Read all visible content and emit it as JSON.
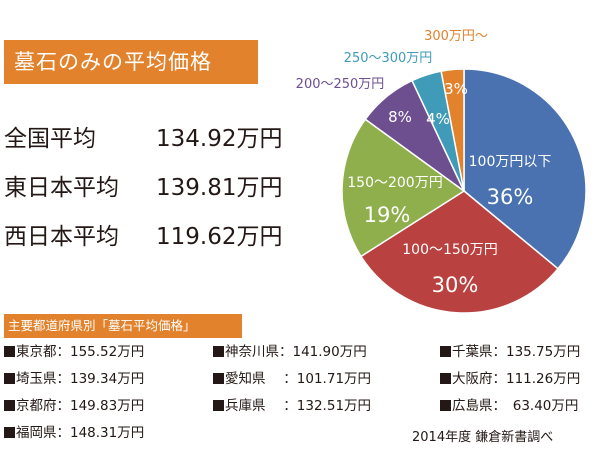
{
  "title": "墓石のみの平均価格",
  "averages": [
    {
      "label": "全国平均",
      "value": "134.92万円"
    },
    {
      "label": "東日本平均",
      "value": "139.81万円"
    },
    {
      "label": "西日本平均",
      "value": "119.62万円"
    }
  ],
  "prefecture_header": "主要都道府県別「墓石平均価格」",
  "prefectures": [
    {
      "text": "東京都：155.52万円"
    },
    {
      "text": "神奈川県：141.90万円"
    },
    {
      "text": "千葉県：135.75万円"
    },
    {
      "text": "埼玉県：139.34万円"
    },
    {
      "text": "愛知県　 ：101.71万円"
    },
    {
      "text": "大阪府：111.26万円"
    },
    {
      "text": "京都府：149.83万円"
    },
    {
      "text": "兵庫県　 ：132.51万円"
    },
    {
      "text": "広島県：　63.40万円"
    },
    {
      "text": "福岡県：148.31万円"
    }
  ],
  "source": "2014年度 鎌倉新書調べ",
  "chart_data": {
    "type": "pie",
    "title": "",
    "slices": [
      {
        "label": "100万円以下",
        "value": 36,
        "value_label": "36%",
        "color": "#4a72b0"
      },
      {
        "label": "100～150万円",
        "value": 30,
        "value_label": "30%",
        "color": "#b9413f"
      },
      {
        "label": "150～200万円",
        "value": 19,
        "value_label": "19%",
        "color": "#8fae4c"
      },
      {
        "label": "200～250万円",
        "value": 8,
        "value_label": "8%",
        "color": "#6d4f8f"
      },
      {
        "label": "250～300万円",
        "value": 4,
        "value_label": "4%",
        "color": "#3f9bb7"
      },
      {
        "label": "300万円～",
        "value": 3,
        "value_label": "3%",
        "color": "#e2822c"
      }
    ]
  }
}
